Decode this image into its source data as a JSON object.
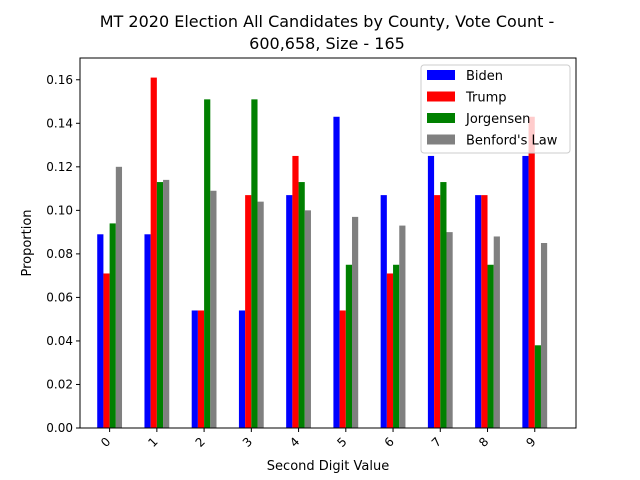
{
  "chart_data": {
    "type": "bar",
    "title_lines": [
      "MT 2020 Election All Candidates by County, Vote Count -",
      "600,658, Size - 165"
    ],
    "xlabel": "Second Digit Value",
    "ylabel": "Proportion",
    "categories": [
      "0",
      "1",
      "2",
      "3",
      "4",
      "5",
      "6",
      "7",
      "8",
      "9"
    ],
    "ylim": [
      0,
      0.17
    ],
    "yticks": [
      "0.00",
      "0.02",
      "0.04",
      "0.06",
      "0.08",
      "0.10",
      "0.12",
      "0.14",
      "0.16"
    ],
    "grid": false,
    "legend_position": "top-right",
    "series": [
      {
        "name": "Biden",
        "color": "#0000ff",
        "values": [
          0.089,
          0.089,
          0.054,
          0.054,
          0.107,
          0.143,
          0.107,
          0.125,
          0.107,
          0.125
        ]
      },
      {
        "name": "Trump",
        "color": "#ff0000",
        "values": [
          0.071,
          0.161,
          0.054,
          0.107,
          0.125,
          0.054,
          0.071,
          0.107,
          0.107,
          0.143
        ]
      },
      {
        "name": "Jorgensen",
        "color": "#008000",
        "values": [
          0.094,
          0.113,
          0.151,
          0.151,
          0.113,
          0.075,
          0.075,
          0.113,
          0.075,
          0.038
        ]
      },
      {
        "name": "Benford's Law",
        "color": "#808080",
        "values": [
          0.12,
          0.114,
          0.109,
          0.104,
          0.1,
          0.097,
          0.093,
          0.09,
          0.088,
          0.085
        ]
      }
    ]
  }
}
